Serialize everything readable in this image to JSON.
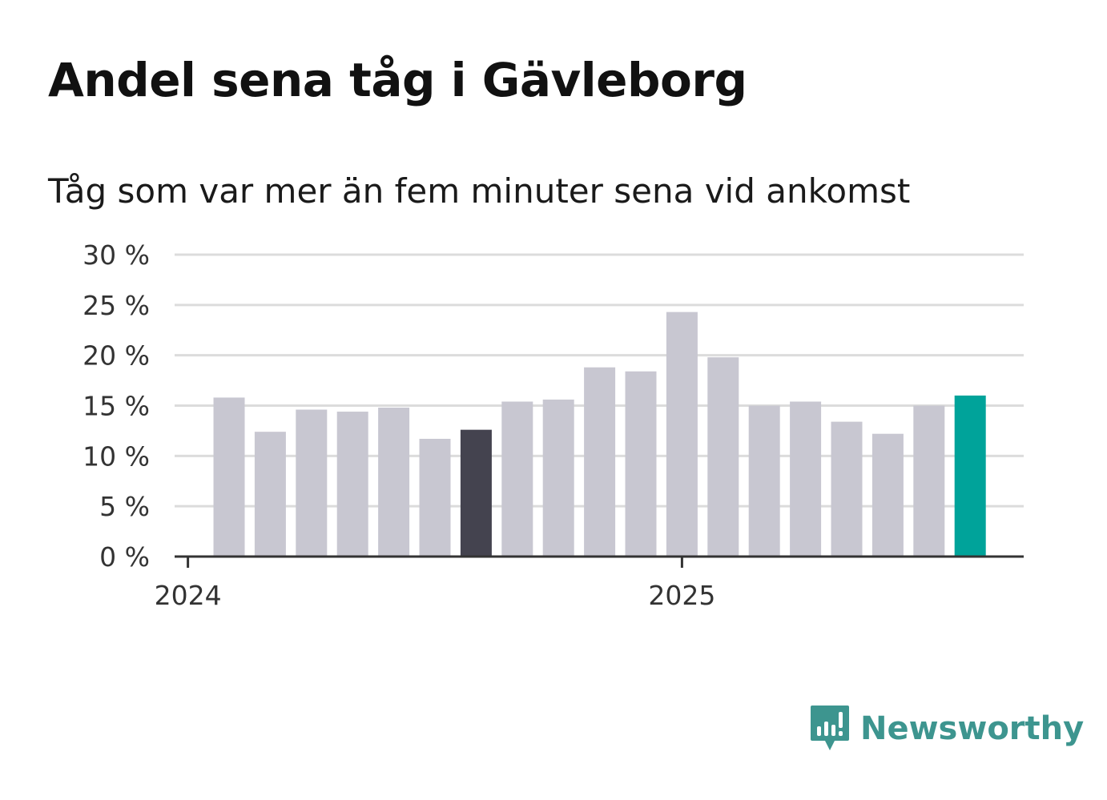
{
  "title": "Andel sena tåg i Gävleborg",
  "subtitle": "Tåg som var mer än fem minuter sena vid ankomst",
  "brand": {
    "name": "Newsworthy",
    "icon": "newsworthy-logo-icon",
    "color": "#3d958f"
  },
  "colors": {
    "default_bar": "#c8c7d1",
    "highlight_bar": "#44434f",
    "latest_bar": "#00a39a",
    "grid": "#dcdcdc",
    "axis": "#333333"
  },
  "chart_data": {
    "type": "bar",
    "title": "Andel sena tåg i Gävleborg",
    "subtitle": "Tåg som var mer än fem minuter sena vid ankomst",
    "xlabel": "",
    "ylabel": "",
    "x_tick_labels": [
      {
        "label": "2024",
        "at": 0
      },
      {
        "label": "2025",
        "at": 12
      }
    ],
    "y_tick_labels": [
      "0 %",
      "5 %",
      "10 %",
      "15 %",
      "20 %",
      "25 %",
      "30 %"
    ],
    "y_ticks": [
      0,
      5,
      10,
      15,
      20,
      25,
      30
    ],
    "ylim": [
      0,
      30
    ],
    "grid": true,
    "unit": "%",
    "values": [
      15.8,
      12.4,
      14.6,
      14.4,
      14.8,
      11.7,
      12.6,
      15.4,
      15.6,
      18.8,
      18.4,
      24.3,
      19.8,
      15.0,
      15.4,
      13.4,
      12.2,
      15.0,
      16.0
    ],
    "highlight": {
      "6": "dark",
      "18": "latest"
    }
  }
}
